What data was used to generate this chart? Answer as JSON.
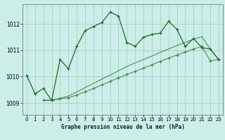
{
  "title": "Graphe pression niveau de la mer (hPa)",
  "bg_color": "#cceee8",
  "grid_color": "#aad4ce",
  "line_color": "#1a6e1a",
  "x_ticks": [
    0,
    1,
    2,
    3,
    4,
    5,
    6,
    7,
    8,
    9,
    10,
    11,
    12,
    13,
    14,
    15,
    16,
    17,
    18,
    19,
    20,
    21,
    22,
    23
  ],
  "y_ticks": [
    1009,
    1010,
    1011,
    1012
  ],
  "ylim": [
    1008.55,
    1012.75
  ],
  "xlim": [
    -0.5,
    23.5
  ],
  "series1_x": [
    0,
    1,
    2,
    3,
    4,
    5,
    6,
    7,
    8,
    9,
    10,
    11,
    12,
    13,
    14,
    15,
    16,
    17,
    18,
    19,
    20,
    21,
    22,
    23
  ],
  "series1_y": [
    1010.05,
    1009.35,
    1009.55,
    1009.1,
    1010.65,
    1010.3,
    1011.15,
    1011.75,
    1011.9,
    1012.05,
    1012.45,
    1012.3,
    1011.3,
    1011.15,
    1011.5,
    1011.6,
    1011.65,
    1012.1,
    1011.8,
    1011.15,
    1011.45,
    1011.1,
    1011.05,
    1010.65
  ],
  "series2_x": [
    2,
    3,
    4,
    5,
    6,
    7,
    8,
    9,
    10,
    11,
    12,
    13,
    14,
    15,
    16,
    17,
    18,
    19,
    20,
    21,
    22,
    23
  ],
  "series2_y": [
    1009.1,
    1009.1,
    1009.15,
    1009.2,
    1009.3,
    1009.42,
    1009.55,
    1009.68,
    1009.82,
    1009.95,
    1010.08,
    1010.2,
    1010.32,
    1010.45,
    1010.58,
    1010.7,
    1010.82,
    1010.93,
    1011.05,
    1011.15,
    1010.6,
    1010.65
  ],
  "series3_x": [
    2,
    3,
    4,
    5,
    6,
    7,
    8,
    9,
    10,
    11,
    12,
    13,
    14,
    15,
    16,
    17,
    18,
    19,
    20,
    21,
    22,
    23
  ],
  "series3_y": [
    1009.1,
    1009.1,
    1009.18,
    1009.26,
    1009.42,
    1009.58,
    1009.74,
    1009.9,
    1010.06,
    1010.22,
    1010.38,
    1010.52,
    1010.65,
    1010.78,
    1010.92,
    1011.05,
    1011.18,
    1011.3,
    1011.42,
    1011.52,
    1011.05,
    1010.65
  ]
}
